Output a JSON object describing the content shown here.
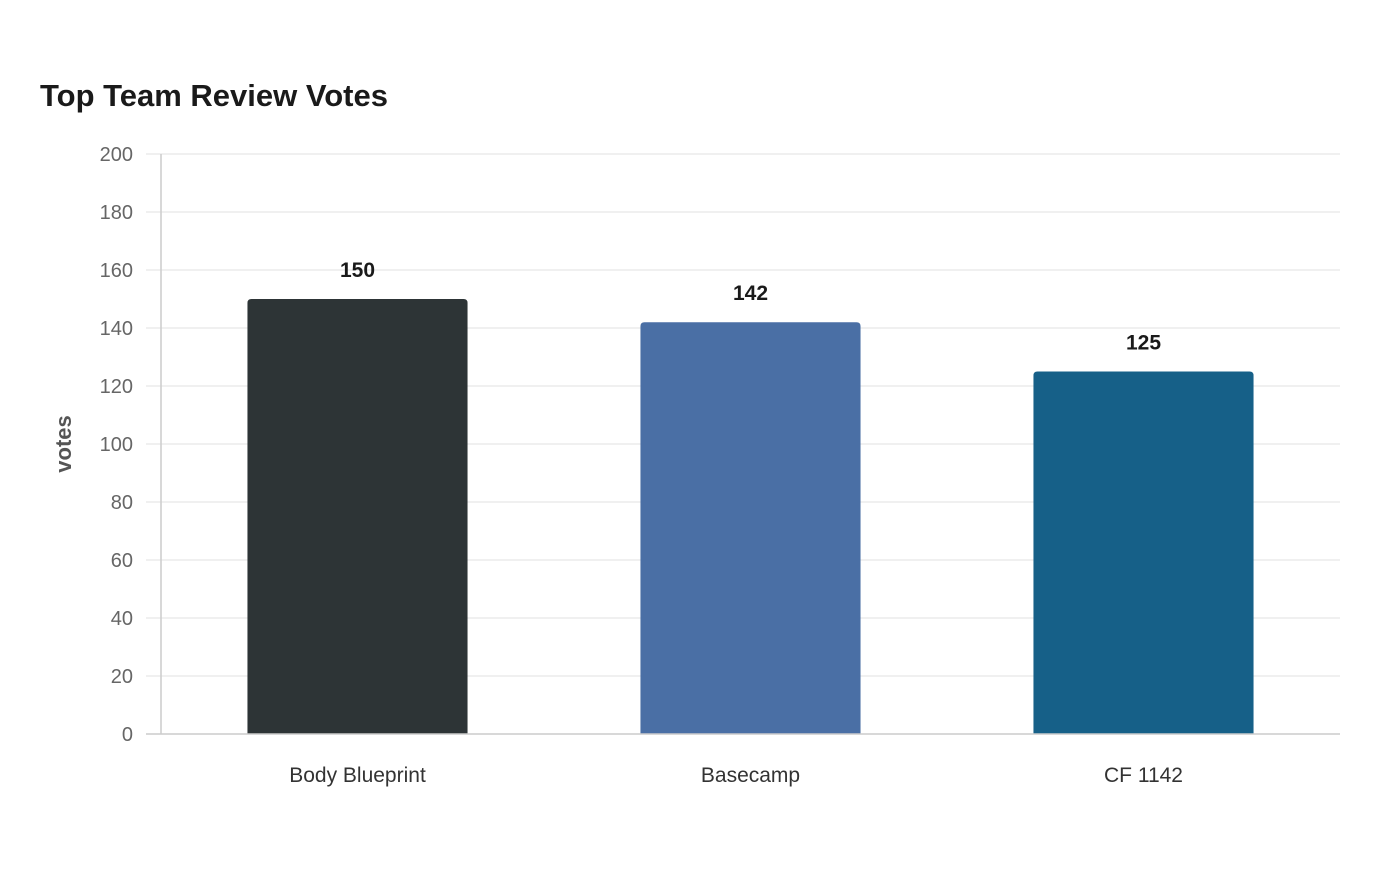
{
  "chart_data": {
    "type": "bar",
    "title": "Top Team Review Votes",
    "xlabel": "",
    "ylabel": "votes",
    "categories": [
      "Body Blueprint",
      "Basecamp",
      "CF 1142"
    ],
    "values": [
      150,
      142,
      125
    ],
    "colors": [
      "#2d3436",
      "#4a6fa5",
      "#166088"
    ],
    "ylim": [
      0,
      200
    ],
    "yticks": [
      0,
      20,
      40,
      60,
      80,
      100,
      120,
      140,
      160,
      180,
      200
    ],
    "grid": true,
    "legend": "none",
    "data_labels": true
  }
}
